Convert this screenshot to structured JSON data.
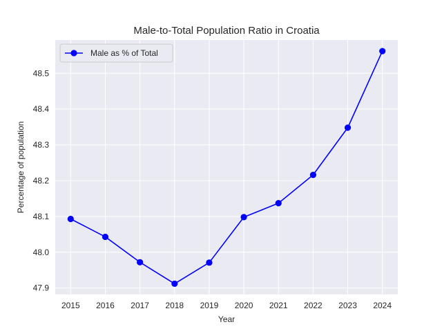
{
  "chart_data": {
    "type": "line",
    "title": "Male-to-Total Population Ratio in Croatia",
    "xlabel": "Year",
    "ylabel": "Percentage of population",
    "x": [
      "2015",
      "2016",
      "2017",
      "2018",
      "2019",
      "2020",
      "2021",
      "2022",
      "2023",
      "2024"
    ],
    "series": [
      {
        "name": "Male as % of Total",
        "color": "#0000ff",
        "marker": "circle",
        "values": [
          48.093,
          48.043,
          47.972,
          47.912,
          47.971,
          48.098,
          48.137,
          48.216,
          48.348,
          48.562
        ]
      }
    ],
    "yticks": [
      "47.9",
      "48.0",
      "48.1",
      "48.2",
      "48.3",
      "48.4",
      "48.5"
    ],
    "ylim": [
      47.882,
      48.593
    ],
    "grid": true,
    "legend_position": "upper-left",
    "plot_background": "#eaeaf2",
    "grid_color": "#ffffff"
  }
}
